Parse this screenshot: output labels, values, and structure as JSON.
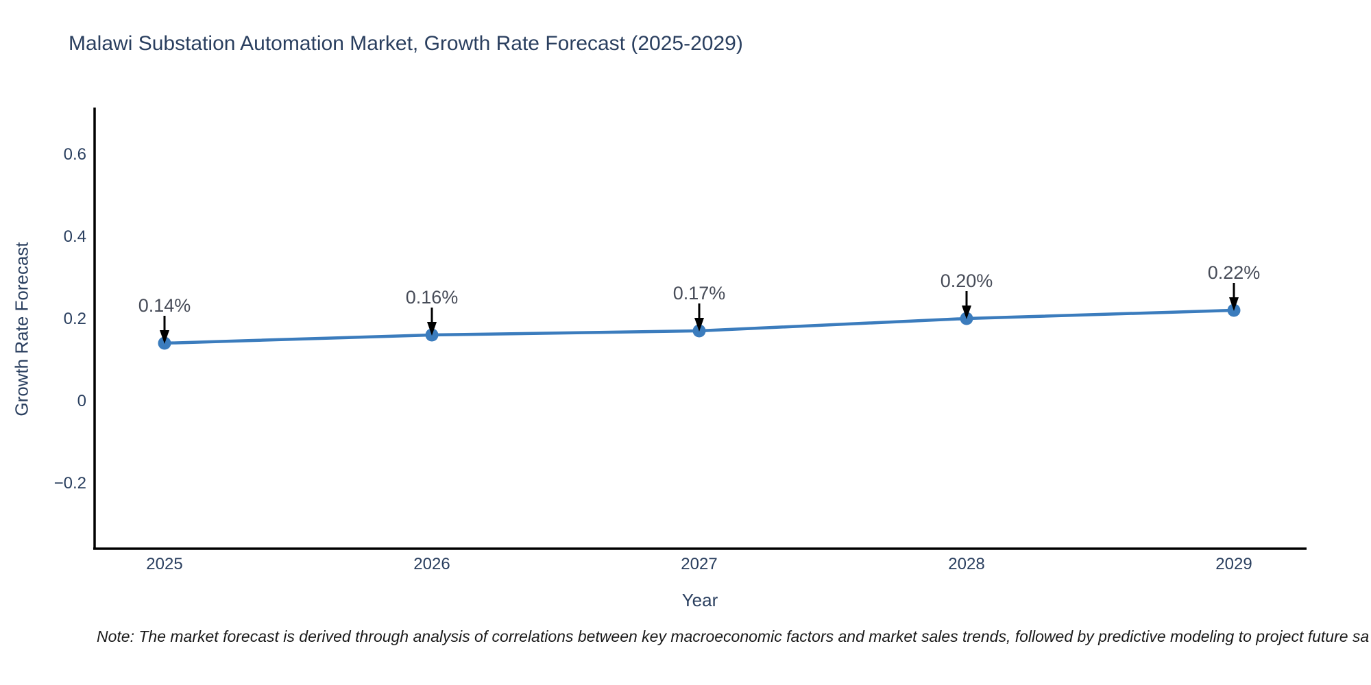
{
  "chart_data": {
    "type": "line",
    "title": "Malawi Substation Automation Market, Growth Rate Forecast (2025-2029)",
    "xlabel": "Year",
    "ylabel": "Growth Rate Forecast",
    "x": [
      2025,
      2026,
      2027,
      2028,
      2029
    ],
    "categories": [
      "2025",
      "2026",
      "2027",
      "2028",
      "2029"
    ],
    "series": [
      {
        "name": "Growth Rate Forecast",
        "values": [
          0.14,
          0.16,
          0.17,
          0.2,
          0.22
        ]
      }
    ],
    "point_labels": [
      "0.14%",
      "0.16%",
      "0.17%",
      "0.20%",
      "0.22%"
    ],
    "yticks": {
      "values": [
        0.6,
        0.4,
        0.2,
        0,
        -0.2
      ],
      "labels": [
        "0.6",
        "0.4",
        "0.2",
        "0",
        "−0.2"
      ]
    },
    "ylim": [
      -0.36,
      0.71
    ],
    "grid": false,
    "legend": "none",
    "annotation_arrows": "down-arrow-to-point",
    "colors": {
      "line": "#3b7cbd",
      "marker": "#3b7cbd",
      "axis": "#000000",
      "title_text": "#2a3f5f",
      "tick_text": "#2a3f5f",
      "annotation_text": "#474c58",
      "note_text": "#1a1a1a"
    }
  },
  "note": {
    "text": "Note: The market forecast is derived through analysis of correlations between key macroeconomic factors and market sales trends, followed by predictive modeling to project future sa"
  }
}
